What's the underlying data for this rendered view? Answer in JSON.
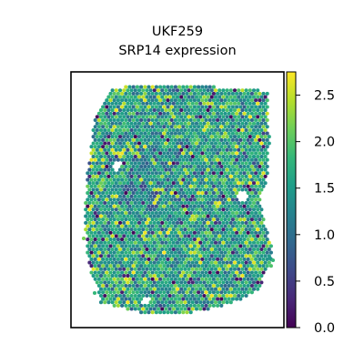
{
  "chart_data": {
    "type": "scatter",
    "title": "UKF259",
    "subtitle": "SRP14 expression",
    "xlabel": "",
    "ylabel": "",
    "colormap": "viridis",
    "colorbar": {
      "range": [
        0.0,
        2.75
      ],
      "ticks": [
        "0.0",
        "0.5",
        "1.0",
        "1.5",
        "2.0",
        "2.5"
      ],
      "tick_values": [
        0.0,
        0.5,
        1.0,
        1.5,
        2.0,
        2.5
      ]
    },
    "value_distribution": {
      "mean": 1.5,
      "min": 0.0,
      "max": 2.75
    },
    "frame": "box, no axis ticks"
  },
  "colors": {
    "viridis": [
      "#440154",
      "#482878",
      "#3e4989",
      "#31688e",
      "#26828e",
      "#1f9e89",
      "#35b779",
      "#6ece58",
      "#b5de2b",
      "#fde725"
    ]
  }
}
